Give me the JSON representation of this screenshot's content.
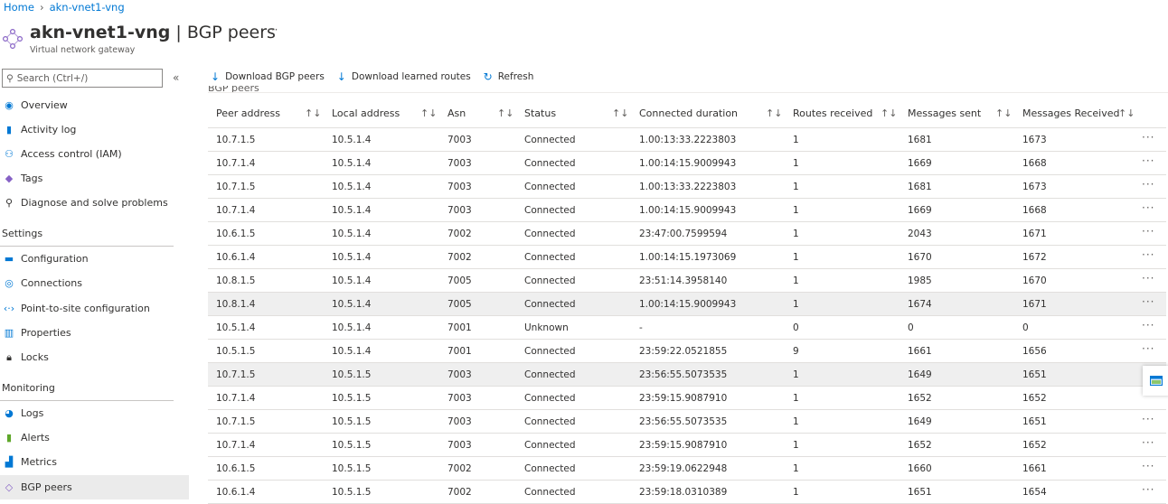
{
  "breadcrumb": {
    "home": "Home",
    "resource": "akn-vnet1-vng"
  },
  "header": {
    "resource_name": "akn-vnet1-vng",
    "separator": "|",
    "page": "BGP peers",
    "subtitle": "Virtual network gateway",
    "more": "···"
  },
  "search": {
    "placeholder": "Search (Ctrl+/)"
  },
  "collapse": "«",
  "sidebar": {
    "top": [
      {
        "label": "Overview",
        "icon": "overview-icon"
      },
      {
        "label": "Activity log",
        "icon": "activity-log-icon"
      },
      {
        "label": "Access control (IAM)",
        "icon": "iam-icon"
      },
      {
        "label": "Tags",
        "icon": "tag-icon"
      },
      {
        "label": "Diagnose and solve problems",
        "icon": "wrench-icon"
      }
    ],
    "settings_title": "Settings",
    "settings": [
      {
        "label": "Configuration",
        "icon": "configuration-icon"
      },
      {
        "label": "Connections",
        "icon": "connections-icon"
      },
      {
        "label": "Point-to-site configuration",
        "icon": "point-to-site-icon"
      },
      {
        "label": "Properties",
        "icon": "properties-icon"
      },
      {
        "label": "Locks",
        "icon": "lock-icon"
      }
    ],
    "monitoring_title": "Monitoring",
    "monitoring": [
      {
        "label": "Logs",
        "icon": "logs-icon"
      },
      {
        "label": "Alerts",
        "icon": "alerts-icon"
      },
      {
        "label": "Metrics",
        "icon": "metrics-icon"
      },
      {
        "label": "BGP peers",
        "icon": "bgp-peers-icon",
        "active": true
      }
    ]
  },
  "toolbar": {
    "download_peers": "Download BGP peers",
    "download_routes": "Download learned routes",
    "refresh": "Refresh"
  },
  "grid_label": "BGP peers",
  "table": {
    "columns": [
      "Peer address",
      "Local address",
      "Asn",
      "Status",
      "Connected duration",
      "Routes received",
      "Messages sent",
      "Messages Received"
    ],
    "sort_icon": "↑↓",
    "row_menu": "···",
    "rows": [
      [
        "10.7.1.5",
        "10.5.1.4",
        "7003",
        "Connected",
        "1.00:13:33.2223803",
        "1",
        "1681",
        "1673"
      ],
      [
        "10.7.1.4",
        "10.5.1.4",
        "7003",
        "Connected",
        "1.00:14:15.9009943",
        "1",
        "1669",
        "1668"
      ],
      [
        "10.7.1.5",
        "10.5.1.4",
        "7003",
        "Connected",
        "1.00:13:33.2223803",
        "1",
        "1681",
        "1673"
      ],
      [
        "10.7.1.4",
        "10.5.1.4",
        "7003",
        "Connected",
        "1.00:14:15.9009943",
        "1",
        "1669",
        "1668"
      ],
      [
        "10.6.1.5",
        "10.5.1.4",
        "7002",
        "Connected",
        "23:47:00.7599594",
        "1",
        "2043",
        "1671"
      ],
      [
        "10.6.1.4",
        "10.5.1.4",
        "7002",
        "Connected",
        "1.00:14:15.1973069",
        "1",
        "1670",
        "1672"
      ],
      [
        "10.8.1.5",
        "10.5.1.4",
        "7005",
        "Connected",
        "23:51:14.3958140",
        "1",
        "1985",
        "1670"
      ],
      [
        "10.8.1.4",
        "10.5.1.4",
        "7005",
        "Connected",
        "1.00:14:15.9009943",
        "1",
        "1674",
        "1671"
      ],
      [
        "10.5.1.4",
        "10.5.1.4",
        "7001",
        "Unknown",
        "-",
        "0",
        "0",
        "0"
      ],
      [
        "10.5.1.5",
        "10.5.1.4",
        "7001",
        "Connected",
        "23:59:22.0521855",
        "9",
        "1661",
        "1656"
      ],
      [
        "10.7.1.5",
        "10.5.1.5",
        "7003",
        "Connected",
        "23:56:55.5073535",
        "1",
        "1649",
        "1651"
      ],
      [
        "10.7.1.4",
        "10.5.1.5",
        "7003",
        "Connected",
        "23:59:15.9087910",
        "1",
        "1652",
        "1652"
      ],
      [
        "10.7.1.5",
        "10.5.1.5",
        "7003",
        "Connected",
        "23:56:55.5073535",
        "1",
        "1649",
        "1651"
      ],
      [
        "10.7.1.4",
        "10.5.1.5",
        "7003",
        "Connected",
        "23:59:15.9087910",
        "1",
        "1652",
        "1652"
      ],
      [
        "10.6.1.5",
        "10.5.1.5",
        "7002",
        "Connected",
        "23:59:19.0622948",
        "1",
        "1660",
        "1661"
      ],
      [
        "10.6.1.4",
        "10.5.1.5",
        "7002",
        "Connected",
        "23:59:18.0310389",
        "1",
        "1651",
        "1654"
      ]
    ],
    "highlighted_rows": [
      7,
      10
    ]
  }
}
